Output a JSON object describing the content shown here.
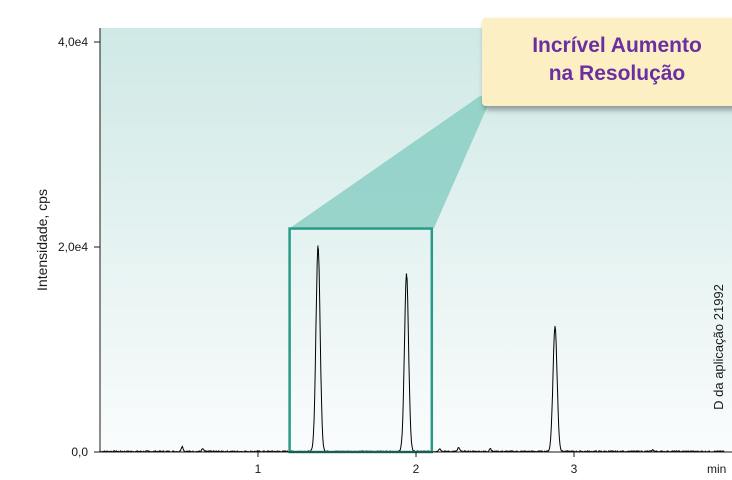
{
  "chart_data": {
    "type": "line",
    "title": "",
    "xlabel": "",
    "ylabel": "Intensidade, cps",
    "x_unit_label": "min",
    "xlim": [
      0,
      3.0
    ],
    "ylim": [
      0,
      40000
    ],
    "x_ticks": [
      1,
      2,
      3
    ],
    "x_tick_labels": [
      "1",
      "2",
      "3"
    ],
    "y_ticks": [
      0,
      20000,
      40000
    ],
    "y_tick_labels": [
      "0,0",
      "2,0e4",
      "4,0e4"
    ],
    "grid": false,
    "series": [
      {
        "peaks": [
          {
            "x": 1.38,
            "y": 20100
          },
          {
            "x": 1.94,
            "y": 17300
          },
          {
            "x": 2.88,
            "y": 12200
          }
        ],
        "small_peaks": [
          {
            "x": 0.52,
            "y": 500
          },
          {
            "x": 0.65,
            "y": 250
          },
          {
            "x": 2.15,
            "y": 300
          },
          {
            "x": 2.27,
            "y": 350
          },
          {
            "x": 2.47,
            "y": 300
          },
          {
            "x": 3.5,
            "y": 150
          }
        ]
      }
    ],
    "highlight_range": {
      "x": [
        1.2,
        2.1
      ],
      "y": [
        0,
        21800
      ]
    },
    "annotation": {
      "line1": "Incrível Aumento",
      "line2": "na Resolução"
    },
    "side_label": "D da aplicação 21992",
    "colors": {
      "trace": "#000000",
      "highlight_box": "#2a9a88",
      "background_top": "#cfe9e6",
      "background_bottom": "#fafcfc",
      "funnel": "#7fc9bd",
      "callout_fill": "#fcefc4",
      "callout_text": "#6a2fa0"
    }
  }
}
